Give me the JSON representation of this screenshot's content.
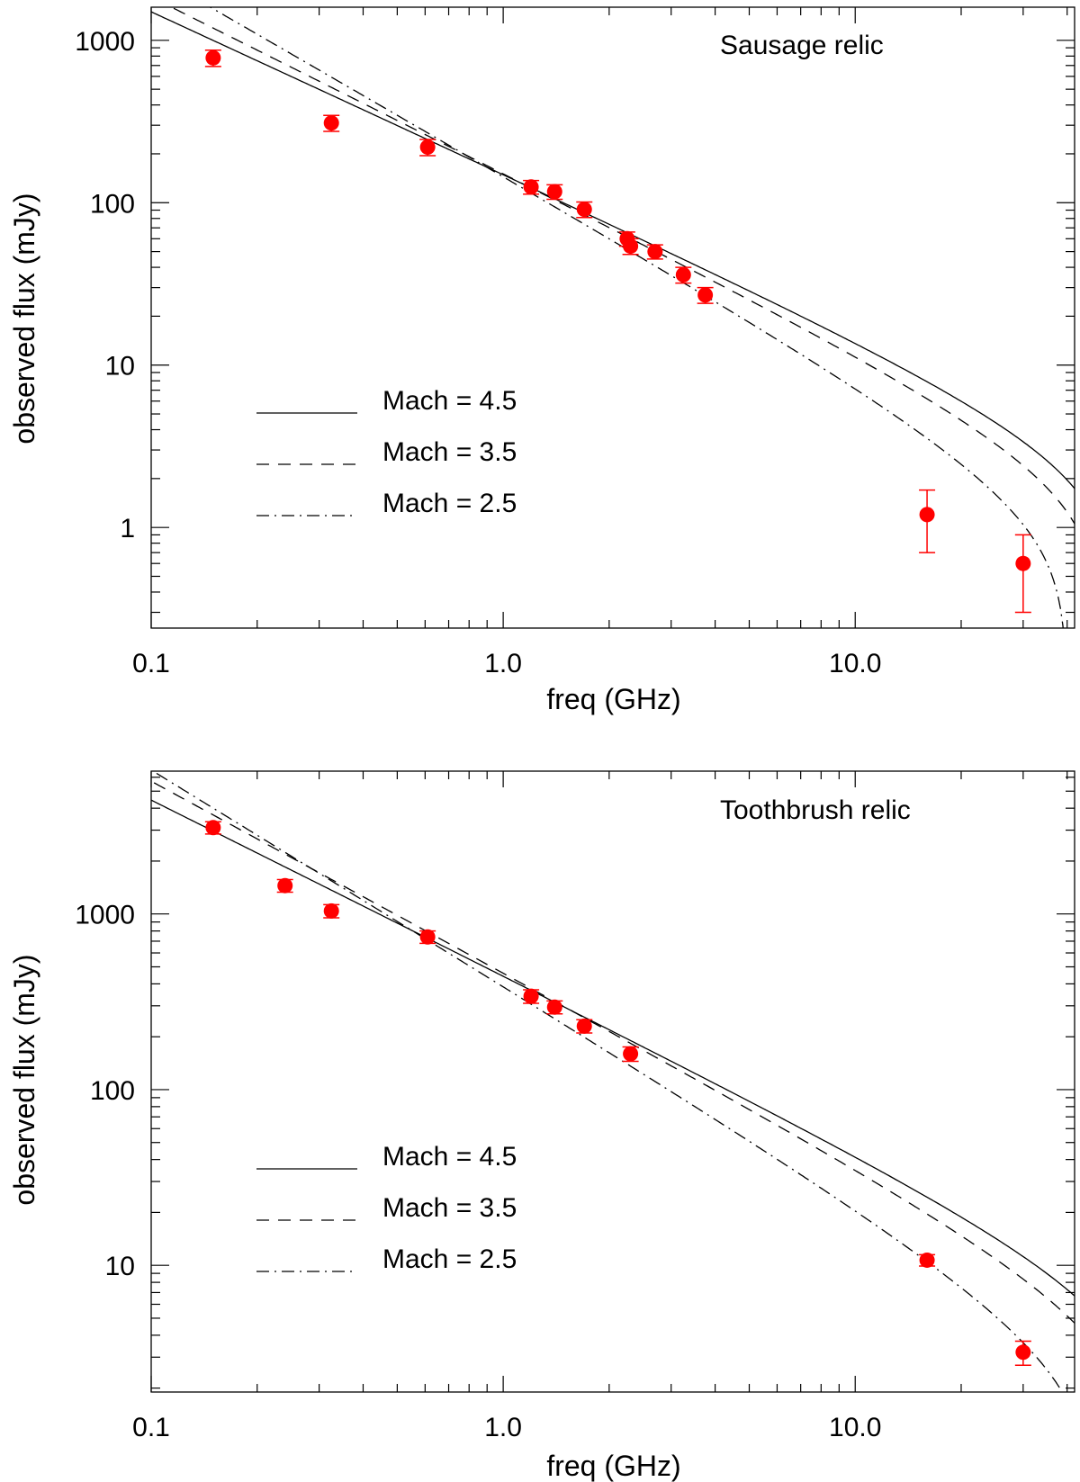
{
  "chart_data": [
    {
      "type": "scatter",
      "title": "Sausage relic",
      "xlabel": "freq (GHz)",
      "ylabel": "observed flux (mJy)",
      "xscale": "log",
      "yscale": "log",
      "xlim": [
        0.1,
        42
      ],
      "ylim": [
        0.24,
        1600
      ],
      "xticks": [
        {
          "value": 0.1,
          "label": "0.1"
        },
        {
          "value": 1.0,
          "label": "1.0"
        },
        {
          "value": 10.0,
          "label": "10.0"
        }
      ],
      "yticks": [
        {
          "value": 1,
          "label": "1"
        },
        {
          "value": 10,
          "label": "10"
        },
        {
          "value": 100,
          "label": "100"
        },
        {
          "value": 1000,
          "label": "1000"
        }
      ],
      "marker_color": "#ff0000",
      "points": [
        {
          "x": 0.15,
          "y": 780,
          "err": 90
        },
        {
          "x": 0.325,
          "y": 310,
          "err": 35
        },
        {
          "x": 0.61,
          "y": 220,
          "err": 25
        },
        {
          "x": 1.2,
          "y": 125,
          "err": 12
        },
        {
          "x": 1.4,
          "y": 117,
          "err": 12
        },
        {
          "x": 1.7,
          "y": 91,
          "err": 10
        },
        {
          "x": 2.25,
          "y": 60,
          "err": 6
        },
        {
          "x": 2.3,
          "y": 54,
          "err": 6
        },
        {
          "x": 2.7,
          "y": 50,
          "err": 5
        },
        {
          "x": 3.25,
          "y": 36,
          "err": 4
        },
        {
          "x": 3.75,
          "y": 27,
          "err": 3
        },
        {
          "x": 16,
          "y": 1.2,
          "err": 0.5
        },
        {
          "x": 30,
          "y": 0.6,
          "err": 0.3
        }
      ],
      "curves": [
        {
          "name": "Mach = 4.5",
          "style": "solid",
          "alpha": -1.0,
          "anchor_y": 1500,
          "cutoff_ghz": 55
        },
        {
          "name": "Mach = 3.5",
          "style": "dashed",
          "alpha": -1.085,
          "anchor_y": 1850,
          "cutoff_ghz": 50
        },
        {
          "name": "Mach = 2.5",
          "style": "dashdot",
          "alpha": -1.25,
          "anchor_y": 2600,
          "cutoff_ghz": 40
        }
      ]
    },
    {
      "type": "scatter",
      "title": "Toothbrush relic",
      "xlabel": "freq (GHz)",
      "ylabel": "observed flux (mJy)",
      "xscale": "log",
      "yscale": "log",
      "xlim": [
        0.1,
        42
      ],
      "ylim": [
        1.9,
        6500
      ],
      "xticks": [
        {
          "value": 0.1,
          "label": "0.1"
        },
        {
          "value": 1.0,
          "label": "1.0"
        },
        {
          "value": 10.0,
          "label": "10.0"
        }
      ],
      "yticks": [
        {
          "value": 10,
          "label": "10"
        },
        {
          "value": 100,
          "label": "100"
        },
        {
          "value": 1000,
          "label": "1000"
        }
      ],
      "marker_color": "#ff0000",
      "points": [
        {
          "x": 0.15,
          "y": 3100,
          "err": 250
        },
        {
          "x": 0.24,
          "y": 1450,
          "err": 120
        },
        {
          "x": 0.325,
          "y": 1040,
          "err": 90
        },
        {
          "x": 0.61,
          "y": 740,
          "err": 60
        },
        {
          "x": 1.2,
          "y": 340,
          "err": 30
        },
        {
          "x": 1.4,
          "y": 295,
          "err": 25
        },
        {
          "x": 1.7,
          "y": 230,
          "err": 20
        },
        {
          "x": 2.3,
          "y": 160,
          "err": 15
        },
        {
          "x": 16,
          "y": 10.7,
          "err": 0.8
        },
        {
          "x": 30,
          "y": 3.2,
          "err": 0.5
        }
      ],
      "curves": [
        {
          "name": "Mach = 4.5",
          "style": "solid",
          "alpha": -1.0,
          "anchor_y": 4450,
          "cutoff_ghz": 70
        },
        {
          "name": "Mach = 3.5",
          "style": "dashed",
          "alpha": -1.09,
          "anchor_y": 5700,
          "cutoff_ghz": 65
        },
        {
          "name": "Mach = 2.5",
          "style": "dashdot",
          "alpha": -1.23,
          "anchor_y": 6600,
          "cutoff_ghz": 48
        }
      ]
    }
  ]
}
